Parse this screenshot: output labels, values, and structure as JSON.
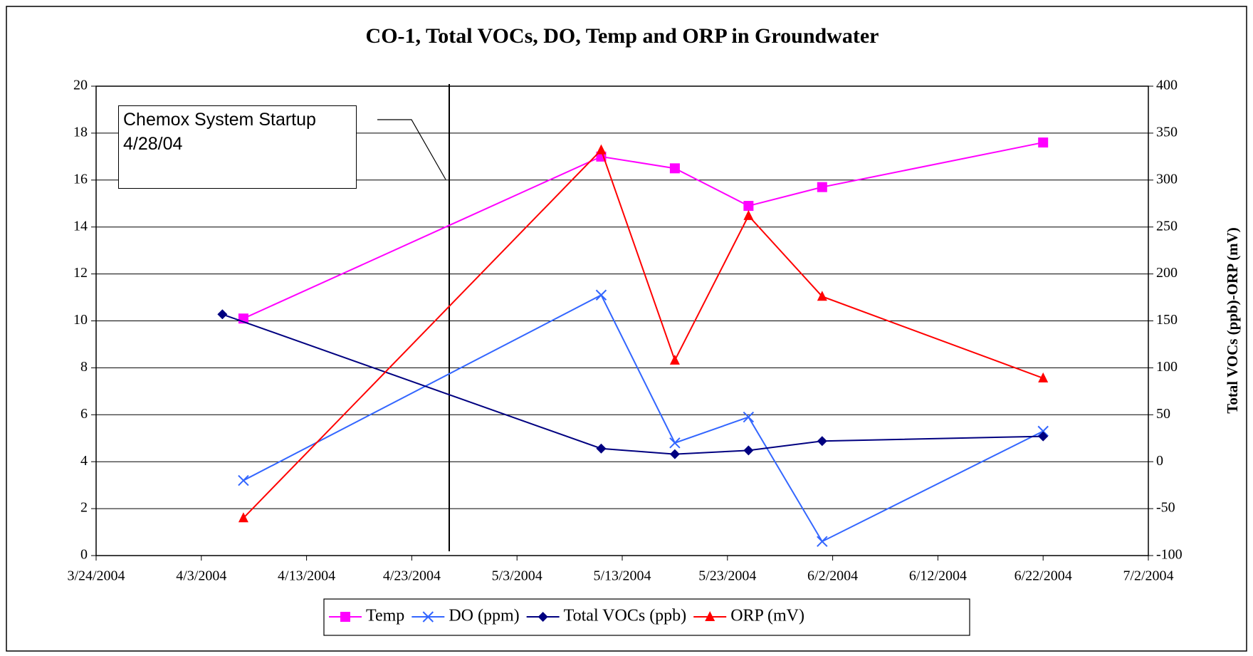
{
  "chart_data": {
    "type": "line",
    "title": "CO-1, Total VOCs, DO, Temp and ORP in Groundwater",
    "y2label": "Total VOCs (ppb)-ORP (mV)",
    "annotation": "Chemox System Startup 4/28/04",
    "xlim": [
      "3/24/2004",
      "7/2/2004"
    ],
    "xticks": [
      "3/24/2004",
      "4/3/2004",
      "4/13/2004",
      "4/23/2004",
      "5/3/2004",
      "5/13/2004",
      "5/23/2004",
      "6/2/2004",
      "6/12/2004",
      "6/22/2004",
      "7/2/2004"
    ],
    "ylim": [
      0,
      20
    ],
    "yticks": [
      0,
      2,
      4,
      6,
      8,
      10,
      12,
      14,
      16,
      18,
      20
    ],
    "y2lim": [
      -100,
      400
    ],
    "y2ticks": [
      -100,
      -50,
      0,
      50,
      100,
      150,
      200,
      250,
      300,
      350,
      400
    ],
    "grid": true,
    "legend": "bottom",
    "series": [
      {
        "name": "Temp",
        "color": "#ff00ff",
        "marker": "square",
        "x": [
          "4/7/2004",
          "5/11/2004",
          "5/18/2004",
          "5/25/2004",
          "6/1/2004",
          "6/22/2004"
        ],
        "values": [
          10.1,
          17.0,
          16.5,
          14.9,
          15.7,
          17.6
        ]
      },
      {
        "name": "DO (ppm)",
        "color": "#3366ff",
        "marker": "x",
        "x": [
          "4/7/2004",
          "5/11/2004",
          "5/18/2004",
          "5/25/2004",
          "6/1/2004",
          "6/22/2004"
        ],
        "values": [
          3.2,
          11.1,
          4.8,
          5.9,
          0.6,
          5.3
        ]
      },
      {
        "name": "Total VOCs (ppb)",
        "color": "#000080",
        "marker": "diamond",
        "axis": "y2",
        "x": [
          "4/5/2004",
          "5/11/2004",
          "5/18/2004",
          "5/25/2004",
          "6/1/2004",
          "6/22/2004"
        ],
        "values": [
          157,
          14,
          8,
          12,
          22,
          27
        ]
      },
      {
        "name": "ORP (mV)",
        "color": "#ff0000",
        "marker": "triangle",
        "axis": "y2",
        "x": [
          "4/7/2004",
          "5/11/2004",
          "5/18/2004",
          "5/25/2004",
          "6/1/2004",
          "6/22/2004"
        ],
        "values": [
          -60,
          332,
          108,
          262,
          176,
          89
        ]
      }
    ]
  }
}
